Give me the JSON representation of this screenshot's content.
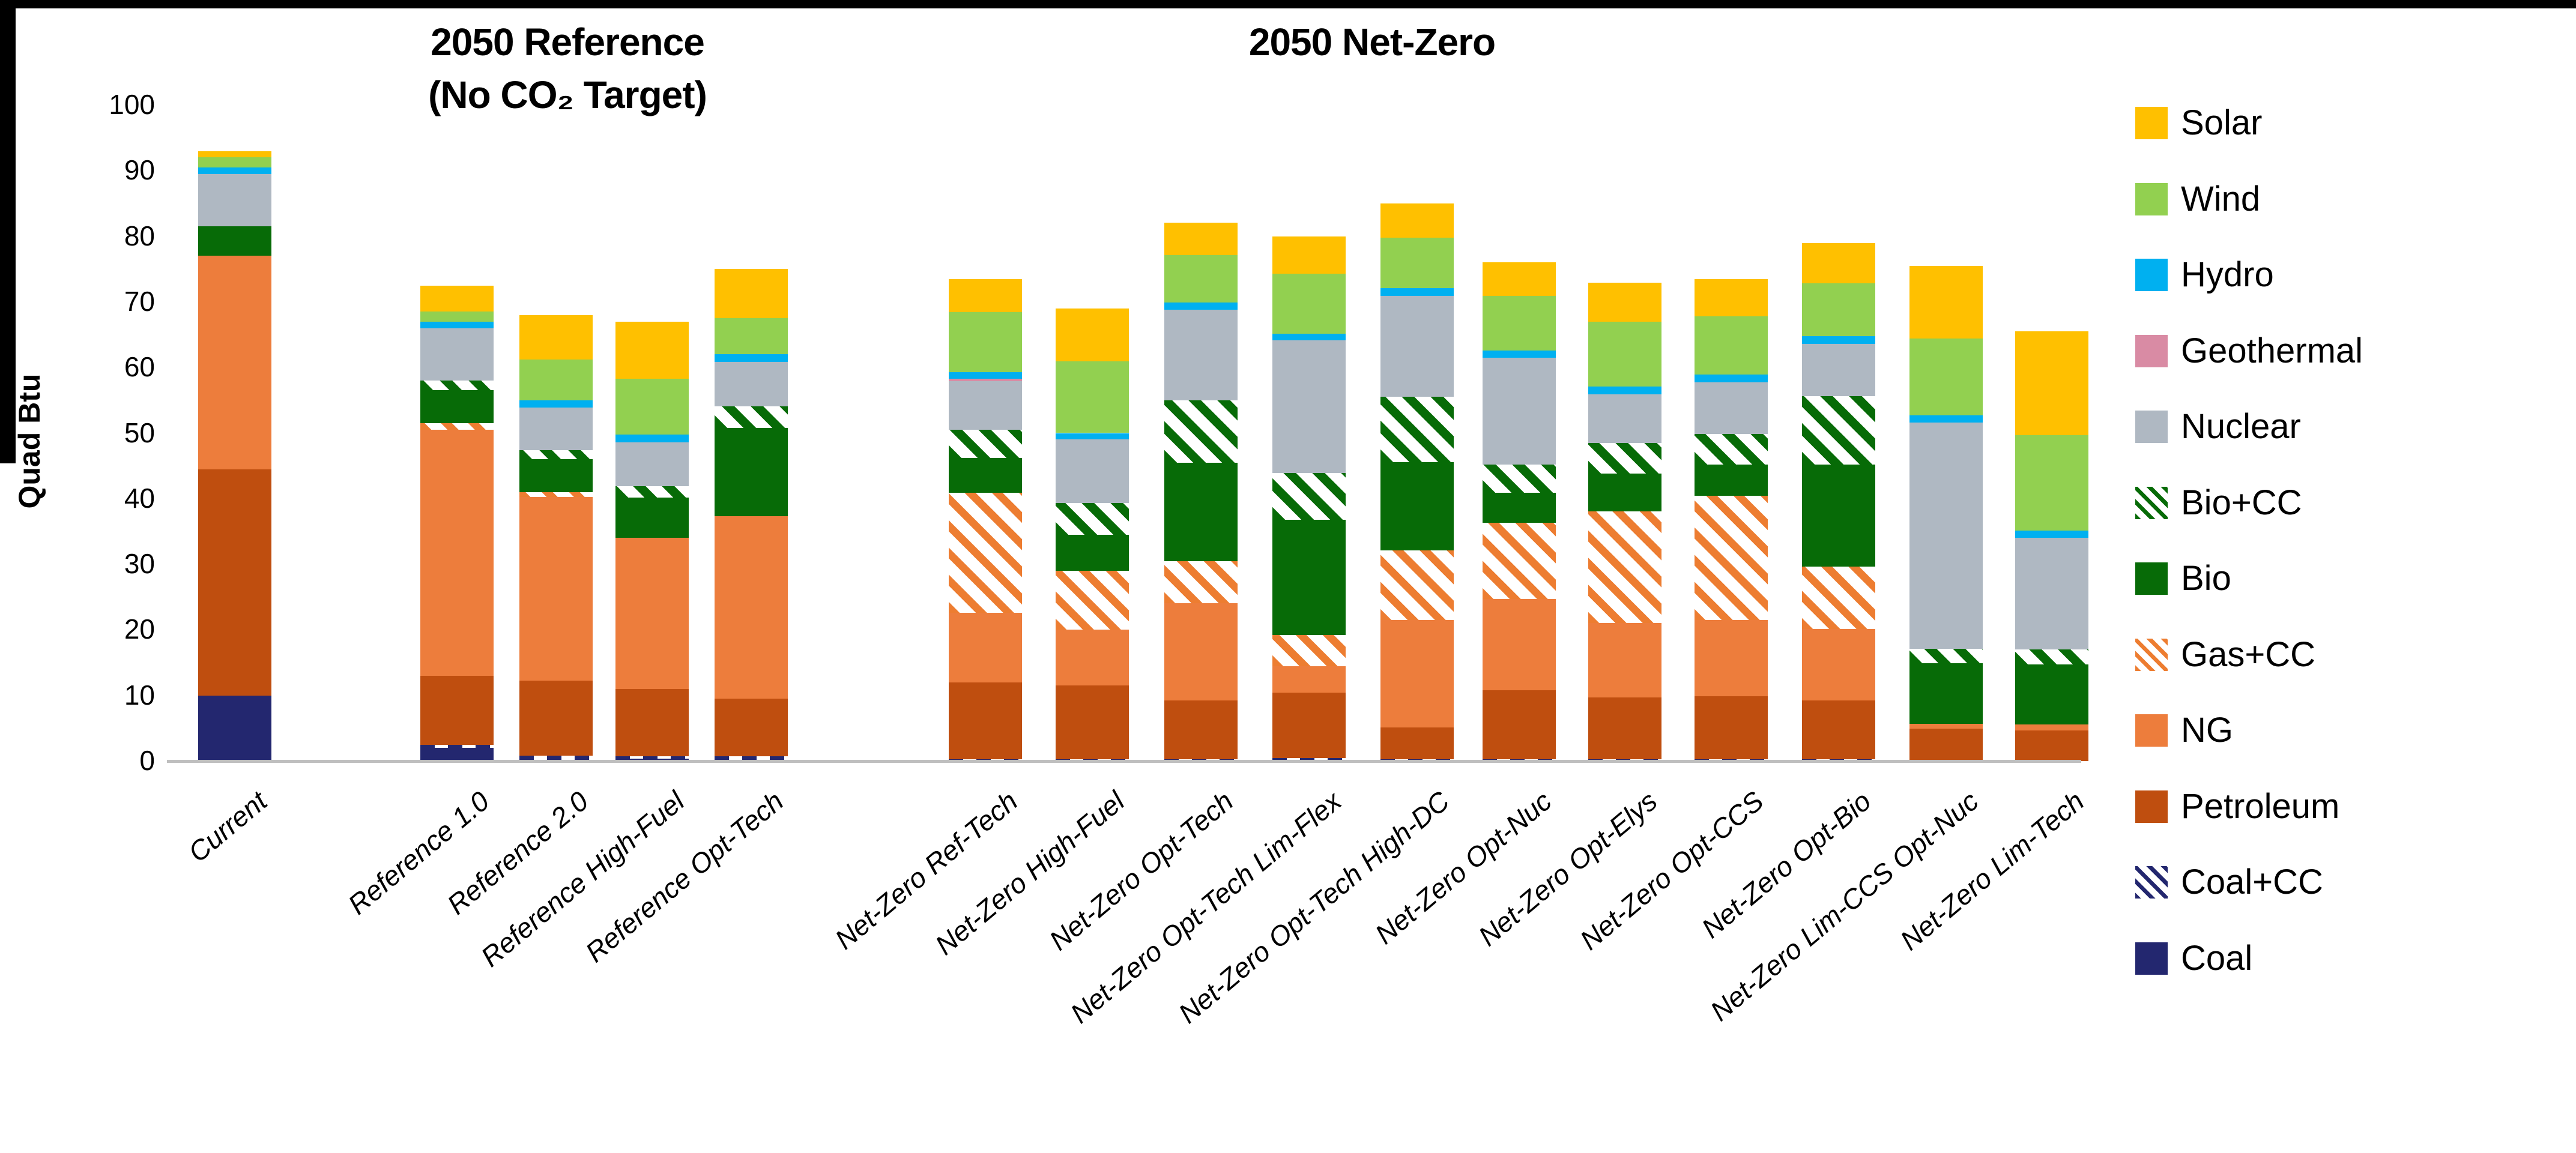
{
  "page": {
    "left_group_title_line1": "2050 Reference",
    "left_group_title_line2": "(No CO₂ Target)",
    "right_group_title": "2050 Net-Zero",
    "y_axis_label": "Quad Btu"
  },
  "chart_data": {
    "type": "bar",
    "stacked": true,
    "title": "",
    "xlabel": "",
    "ylabel": "Quad Btu",
    "ylim": [
      0,
      100
    ],
    "ytick_step": 10,
    "grid": false,
    "legend_position": "right",
    "categories": [
      "Current",
      "Reference 1.0",
      "Reference 2.0",
      "Reference High-Fuel",
      "Reference Opt-Tech",
      "Net-Zero Ref-Tech",
      "Net-Zero High-Fuel",
      "Net-Zero Opt-Tech",
      "Net-Zero Opt-Tech Lim-Flex",
      "Net-Zero Opt-Tech High-DC",
      "Net-Zero Opt-Nuc",
      "Net-Zero Opt-Elys",
      "Net-Zero Opt-CCS",
      "Net-Zero Opt-Bio",
      "Net-Zero Lim-CCS Opt-Nuc",
      "Net-Zero Lim-Tech"
    ],
    "series": [
      {
        "name": "Coal",
        "color": "#23276F",
        "pattern": "solid",
        "values": [
          10,
          2,
          0.2,
          0.4,
          0.2,
          0,
          0,
          0,
          0,
          0,
          0,
          0,
          0,
          0,
          0,
          0
        ]
      },
      {
        "name": "Coal+CC",
        "color": "#23276F",
        "pattern": "dash",
        "values": [
          0,
          0.5,
          0.6,
          0.3,
          0.5,
          0.3,
          0.3,
          0.3,
          0.5,
          0.3,
          0.3,
          0.3,
          0.3,
          0.3,
          0,
          0
        ]
      },
      {
        "name": "Petroleum",
        "color": "#BF4E0F",
        "pattern": "solid",
        "values": [
          34.5,
          10.5,
          11.5,
          10.3,
          8.8,
          11.7,
          11.2,
          8.9,
          9.9,
          4.8,
          10.5,
          9.4,
          9.6,
          8.9,
          4.9,
          4.7
        ]
      },
      {
        "name": "NG",
        "color": "#ED7D3C",
        "pattern": "solid",
        "values": [
          32.5,
          37.5,
          28,
          23,
          27.8,
          10.6,
          8.5,
          14.9,
          4.1,
          16.4,
          13.9,
          11.3,
          11.6,
          10.9,
          0.8,
          0.9
        ]
      },
      {
        "name": "Gas+CC",
        "color": "#ED7D31",
        "pattern": "hatch-orange",
        "values": [
          0,
          1,
          0.7,
          0,
          0,
          18.3,
          9,
          6.4,
          4.7,
          10.6,
          11.6,
          17.1,
          18.9,
          9.5,
          0,
          0
        ]
      },
      {
        "name": "Bio",
        "color": "#076B07",
        "pattern": "solid",
        "values": [
          4.5,
          5,
          5,
          6.2,
          13.5,
          5.3,
          5.5,
          15,
          17.6,
          13.5,
          4.6,
          5.7,
          4.8,
          15.6,
          9.2,
          9.1
        ]
      },
      {
        "name": "Bio+CC",
        "color": "#076B07",
        "pattern": "hatch-green",
        "values": [
          0,
          1.5,
          1.4,
          1.7,
          3.3,
          4.3,
          4.8,
          9.5,
          7.1,
          9.9,
          4.3,
          4.7,
          4.7,
          10.4,
          2.2,
          2.3
        ]
      },
      {
        "name": "Nuclear",
        "color": "#AFB8C2",
        "pattern": "solid",
        "values": [
          8,
          8,
          6.5,
          6.7,
          6.7,
          7.4,
          9.7,
          13.8,
          20.2,
          15.4,
          16.3,
          7.4,
          7.8,
          8,
          34.5,
          17
        ]
      },
      {
        "name": "Geothermal",
        "color": "#D98BA4",
        "pattern": "solid",
        "values": [
          0,
          0,
          0,
          0,
          0,
          0.4,
          0,
          0,
          0,
          0,
          0,
          0,
          0,
          0,
          0,
          0
        ]
      },
      {
        "name": "Hydro",
        "color": "#00B0F0",
        "pattern": "solid",
        "values": [
          1,
          1,
          1.1,
          1.2,
          1.2,
          1,
          1,
          1.1,
          1,
          1.2,
          1.1,
          1.2,
          1.2,
          1.2,
          1.1,
          1.1
        ]
      },
      {
        "name": "Wind",
        "color": "#92D050",
        "pattern": "solid",
        "values": [
          1.5,
          1.5,
          6.2,
          8.5,
          5.5,
          9.1,
          10.9,
          7.2,
          9.2,
          7.7,
          8.3,
          9.9,
          8.9,
          8,
          11.7,
          14.6
        ]
      },
      {
        "name": "Solar",
        "color": "#FFC000",
        "pattern": "solid",
        "values": [
          1,
          4,
          6.8,
          8.7,
          7.5,
          5.1,
          8.1,
          5,
          5.7,
          5.2,
          5.1,
          5.9,
          5.7,
          6.2,
          11.1,
          15.8
        ]
      }
    ]
  }
}
